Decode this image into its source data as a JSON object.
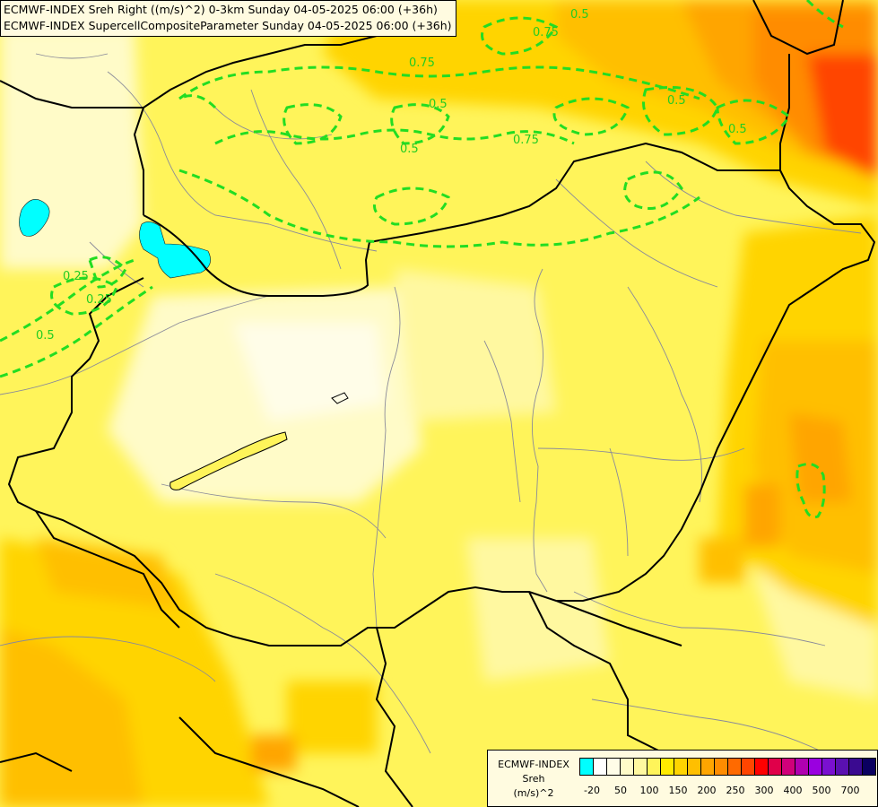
{
  "title_lines": [
    "ECMWF-INDEX Sreh Right ((m/s)^2) 0-3km Sunday 04-05-2025 06:00 (+36h)",
    "ECMWF-INDEX SupercellCompositeParameter Sunday 04-05-2025 06:00 (+36h)"
  ],
  "legend": {
    "title_lines": [
      "ECMWF-INDEX",
      "Sreh",
      "(m/s)^2"
    ],
    "colors": [
      "#00ffff",
      "#ffffff",
      "#fffde8",
      "#fffbc8",
      "#fff8a0",
      "#fff45a",
      "#ffeb00",
      "#ffd400",
      "#ffbf00",
      "#ffa500",
      "#ff8c00",
      "#ff6a00",
      "#ff4500",
      "#ff0000",
      "#e0004a",
      "#d0007a",
      "#b000b0",
      "#9a00e0",
      "#7a10d0",
      "#5a10b0",
      "#3a0a90",
      "#0a0060"
    ],
    "ticks": [
      "-20",
      "50",
      "100",
      "150",
      "200",
      "250",
      "300",
      "400",
      "500",
      "700"
    ]
  },
  "contour_labels": [
    "0.25",
    "0.5",
    "0.75",
    "0.5",
    "0.75",
    "0.5",
    "0.5",
    "0.75",
    "0.5",
    "0.5",
    "0.25"
  ],
  "colors": {
    "background": "#fff45a",
    "contour": "#22dd22",
    "border": "#000000",
    "river": "#8a8a99"
  }
}
